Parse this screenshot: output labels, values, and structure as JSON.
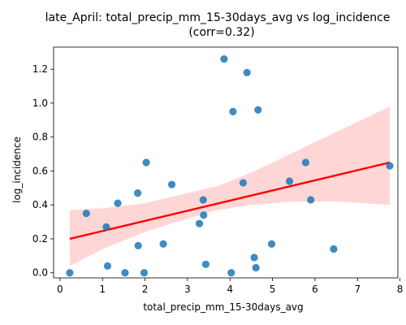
{
  "chart_data": {
    "type": "scatter",
    "title_line1": "late_April: total_precip_mm_15-30days_avg vs log_incidence",
    "title_line2": "(corr=0.32)",
    "xlabel": "total_precip_mm_15-30days_avg",
    "ylabel": "log_incidence",
    "xlim": [
      -0.15,
      7.95
    ],
    "ylim": [
      -0.03,
      1.33
    ],
    "xticks": [
      0,
      1,
      2,
      3,
      4,
      5,
      6,
      7,
      8
    ],
    "yticks": [
      0.0,
      0.2,
      0.4,
      0.6,
      0.8,
      1.0,
      1.2
    ],
    "grid": false,
    "point_color": "#1f77b4",
    "line_color": "#ff0000",
    "band_color": "#ff9999",
    "points": [
      {
        "x": 0.23,
        "y": 0.0
      },
      {
        "x": 0.62,
        "y": 0.35
      },
      {
        "x": 1.09,
        "y": 0.27
      },
      {
        "x": 1.12,
        "y": 0.04
      },
      {
        "x": 1.36,
        "y": 0.41
      },
      {
        "x": 1.53,
        "y": 0.0
      },
      {
        "x": 1.83,
        "y": 0.47
      },
      {
        "x": 1.84,
        "y": 0.16
      },
      {
        "x": 1.98,
        "y": 0.0
      },
      {
        "x": 2.03,
        "y": 0.65
      },
      {
        "x": 2.43,
        "y": 0.17
      },
      {
        "x": 2.63,
        "y": 0.52
      },
      {
        "x": 3.28,
        "y": 0.29
      },
      {
        "x": 3.37,
        "y": 0.43
      },
      {
        "x": 3.38,
        "y": 0.34
      },
      {
        "x": 3.43,
        "y": 0.05
      },
      {
        "x": 3.86,
        "y": 1.26
      },
      {
        "x": 4.03,
        "y": 0.0
      },
      {
        "x": 4.07,
        "y": 0.95
      },
      {
        "x": 4.31,
        "y": 0.53
      },
      {
        "x": 4.4,
        "y": 1.18
      },
      {
        "x": 4.57,
        "y": 0.09
      },
      {
        "x": 4.61,
        "y": 0.03
      },
      {
        "x": 4.66,
        "y": 0.96
      },
      {
        "x": 4.98,
        "y": 0.17
      },
      {
        "x": 5.4,
        "y": 0.54
      },
      {
        "x": 5.78,
        "y": 0.65
      },
      {
        "x": 5.9,
        "y": 0.43
      },
      {
        "x": 6.44,
        "y": 0.14
      },
      {
        "x": 7.76,
        "y": 0.63
      }
    ],
    "regression": {
      "x": [
        0.23,
        7.76
      ],
      "y": [
        0.2,
        0.65
      ]
    },
    "confidence_band": {
      "x": [
        0.23,
        1.0,
        2.0,
        3.0,
        3.7,
        4.5,
        5.5,
        6.5,
        7.76
      ],
      "lower": [
        0.04,
        0.14,
        0.24,
        0.32,
        0.37,
        0.4,
        0.42,
        0.42,
        0.4
      ],
      "upper": [
        0.37,
        0.38,
        0.41,
        0.47,
        0.51,
        0.59,
        0.71,
        0.83,
        0.98
      ]
    }
  }
}
